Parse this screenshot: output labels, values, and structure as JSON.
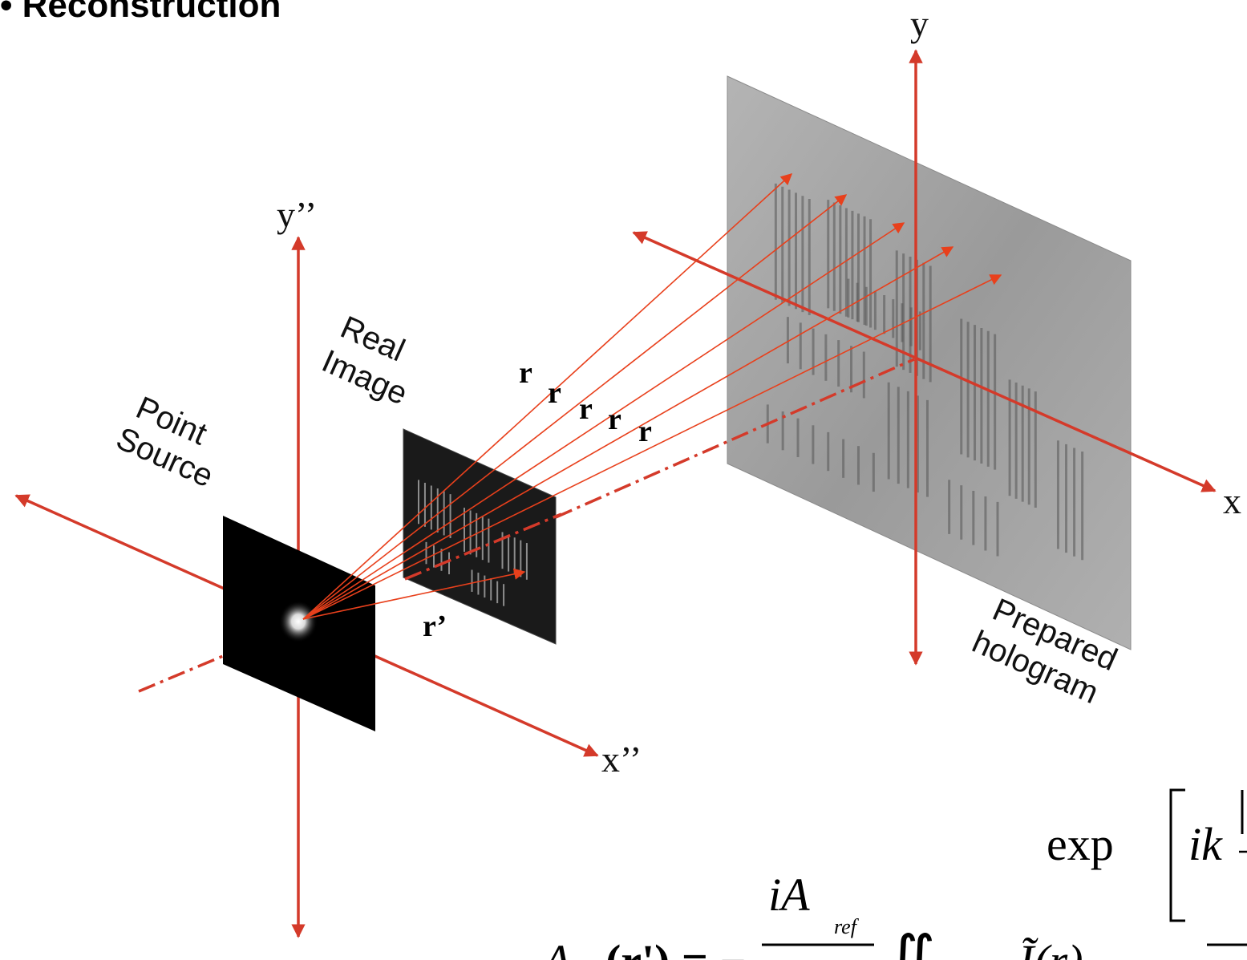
{
  "title": "Reconstruction",
  "title_bullet": "•",
  "colors": {
    "axis": "#d43a2a",
    "ray": "#e8401c",
    "background": "#ffffff",
    "hologram": "#a5a5a5"
  },
  "labels": {
    "point_source": [
      "Point",
      "Source"
    ],
    "real_image": [
      "Real",
      "Image"
    ],
    "prepared_hologram": [
      "Prepared",
      "hologram"
    ],
    "axis_y_hologram": "y",
    "axis_x_hologram": "x",
    "axis_y_source": "y’’",
    "axis_x_source": "x’’",
    "ray_vector": "r",
    "image_vector": "r’"
  },
  "equation": {
    "lhs": "A",
    "argument": "(r') = −",
    "numerator": "iA",
    "numerator_subscript": "ref",
    "integral": "∬",
    "integrand": "Ĩ(r)",
    "exp_text": "exp",
    "exp_argument": "ik"
  }
}
